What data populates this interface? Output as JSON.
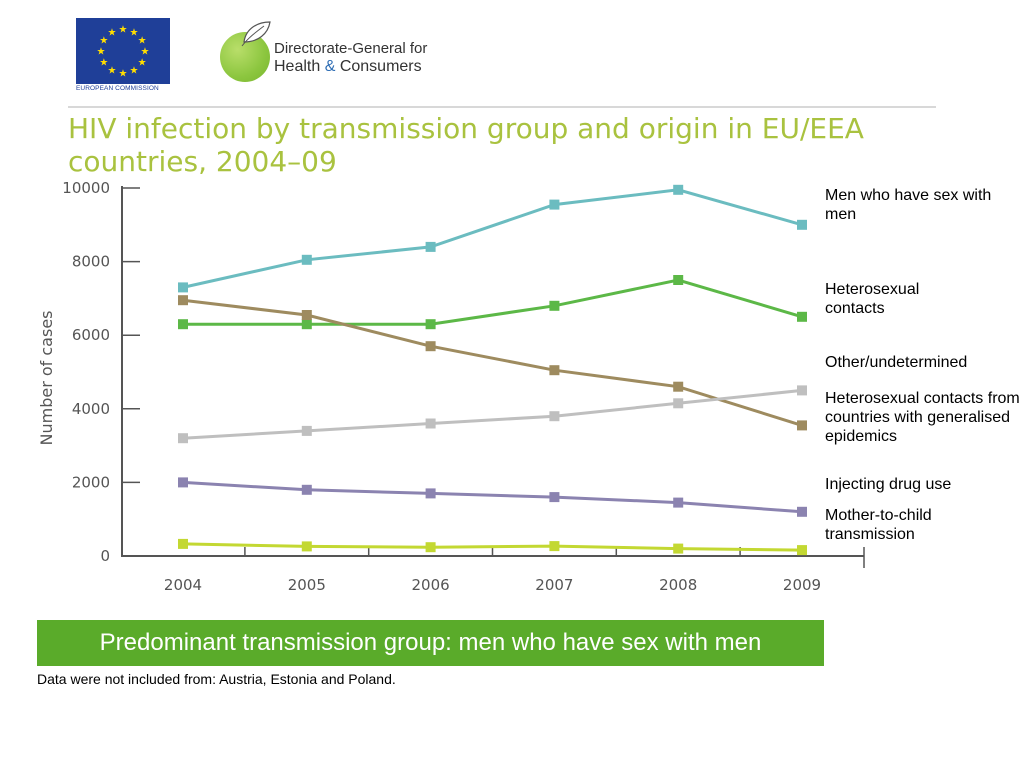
{
  "header": {
    "eu_logo_caption": "EUROPEAN COMMISSION",
    "dg_line1": "Directorate-General for",
    "dg_line2_a": "Health ",
    "dg_line2_amp": "&",
    "dg_line2_b": " Consumers"
  },
  "title": "HIV infection by transmission group and origin in EU/EEA countries, 2004–09",
  "chart_data": {
    "type": "line",
    "x": [
      "2004",
      "2005",
      "2006",
      "2007",
      "2008",
      "2009"
    ],
    "ylabel": "Number of cases",
    "ylim": [
      0,
      10000
    ],
    "yticks": [
      0,
      2000,
      4000,
      6000,
      8000,
      10000
    ],
    "yticks_labels": [
      "0",
      "2000",
      "4000",
      "6000",
      "8000",
      "10000"
    ],
    "grid": false,
    "legend_position": "right",
    "series": [
      {
        "name": "Men who have sex with men",
        "color": "#6bbcc0",
        "values": [
          7300,
          8050,
          8400,
          9550,
          9950,
          9000
        ]
      },
      {
        "name": "Heterosexual contacts",
        "color": "#5cb847",
        "values": [
          6300,
          6300,
          6300,
          6800,
          7500,
          6500
        ]
      },
      {
        "name": "Other/undetermined",
        "color": "#9e8b5f",
        "values": [
          6950,
          6550,
          5700,
          5050,
          4600,
          3550
        ]
      },
      {
        "name": "Heterosexual contacts from countries with generalised epidemics",
        "color": "#bfbfbf",
        "values": [
          3200,
          3400,
          3600,
          3800,
          4150,
          4500
        ]
      },
      {
        "name": "Injecting drug use",
        "color": "#8b83b0",
        "values": [
          2000,
          1800,
          1700,
          1600,
          1450,
          1200
        ]
      },
      {
        "name": "Mother-to-child transmission",
        "color": "#c3d832",
        "values": [
          330,
          260,
          240,
          270,
          200,
          160
        ]
      }
    ]
  },
  "legend": {
    "msm": "Men who have sex with men",
    "hetero": "Heterosexual contacts",
    "other": "Other/undetermined",
    "hetero_gen": "Heterosexual contacts from countries with generalised epidemics",
    "idu": "Injecting drug use",
    "mtct": "Mother-to-child transmission"
  },
  "banner": "Predominant transmission group: men who have sex with men",
  "footnote": "Data were not included from: Austria, Estonia and Poland.",
  "colors": {
    "title": "#a9c23f",
    "banner_bg": "#5aab2a",
    "eu_blue": "#1f3f98",
    "eu_star": "#ffdd00"
  }
}
